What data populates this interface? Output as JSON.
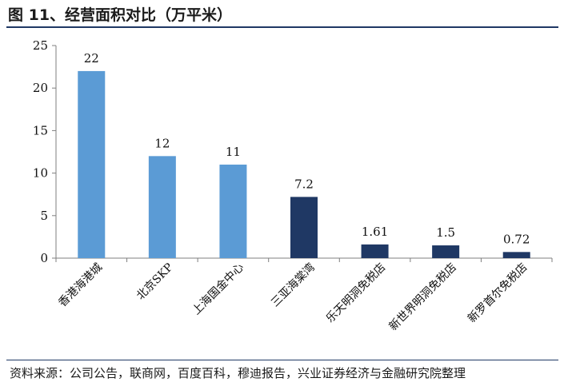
{
  "header": {
    "title": "图 11、经营面积对比（万平米）"
  },
  "footer": {
    "source": "资料来源：公司公告，联商网，百度百科，穆迪报告，兴业证券经济与金融研究院整理"
  },
  "chart_data": {
    "type": "bar",
    "title": "",
    "xlabel": "",
    "ylabel": "",
    "categories": [
      "香港海港城",
      "北京SKP",
      "上海国金中心",
      "三亚海棠湾",
      "乐天明洞免税店",
      "新世界明洞免税店",
      "新罗首尔免税店"
    ],
    "values": [
      22,
      12,
      11,
      7.2,
      1.61,
      1.5,
      0.72
    ],
    "data_labels": [
      "22",
      "12",
      "11",
      "7.2",
      "1.61",
      "1.5",
      "0.72"
    ],
    "yticks": [
      "0",
      "5",
      "10",
      "15",
      "20",
      "25"
    ],
    "ylim": [
      0,
      25
    ],
    "grid": false,
    "colors": {
      "light": "#5b9bd5",
      "dark": "#1f3864"
    },
    "bar_color_keys": [
      "light",
      "light",
      "light",
      "dark",
      "dark",
      "dark",
      "dark"
    ]
  }
}
